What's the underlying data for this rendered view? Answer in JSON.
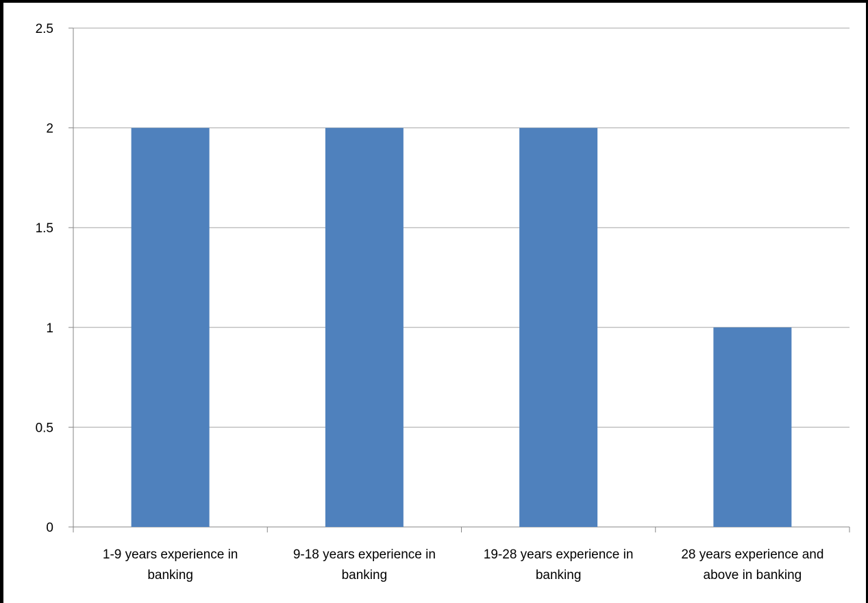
{
  "chart_data": {
    "type": "bar",
    "title": "",
    "xlabel": "",
    "ylabel": "",
    "categories": [
      [
        "1-9 years experience in",
        "banking"
      ],
      [
        "9-18 years experience in",
        "banking"
      ],
      [
        "19-28 years experience in",
        "banking"
      ],
      [
        "28 years experience and",
        "above in banking"
      ]
    ],
    "values": [
      2,
      2,
      2,
      1
    ],
    "ylim": [
      0,
      2.5
    ],
    "yticks": [
      "0",
      "0.5",
      "1",
      "1.5",
      "2",
      "2.5"
    ],
    "grid": true,
    "legend": "none",
    "bar_color": "#4f81bd",
    "grid_color": "#a6a6a6"
  }
}
